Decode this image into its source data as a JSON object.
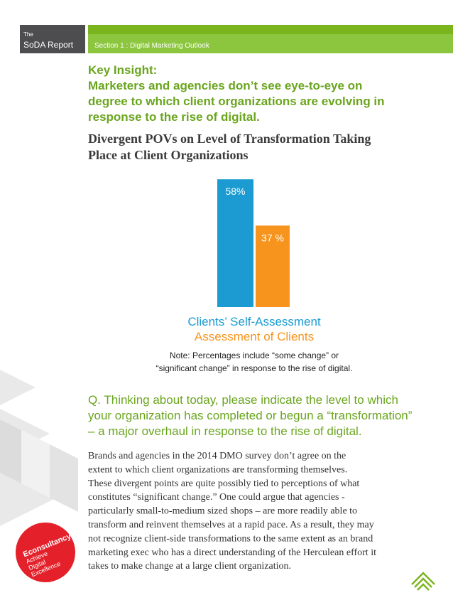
{
  "header": {
    "kicker": "The",
    "report": "SoDA Report",
    "section": "Section 1 : Digital Marketing Outlook"
  },
  "key_insight": {
    "lines": [
      "Key Insight:",
      "Marketers and agencies don’t see eye-to-eye on",
      "degree to which client organizations are evolving in",
      "response to the rise of digital."
    ]
  },
  "chart_data": {
    "type": "bar",
    "title": [
      "Divergent POVs on Level of Transformation Taking",
      "Place at Client Organizations"
    ],
    "series": [
      {
        "name": "Clients’ Self-Assessment",
        "color": "#1b9bd1",
        "values": [
          58
        ],
        "value_labels": [
          "58%"
        ]
      },
      {
        "name": "Assessment of Clients",
        "color": "#f7941d",
        "values": [
          37
        ],
        "value_labels": [
          "37 %"
        ]
      }
    ],
    "note": [
      "Note: Percentages include “some change” or",
      "“significant change” in response to the rise of digital."
    ]
  },
  "question": {
    "lines": [
      "Q. Thinking about today, please indicate the level to which",
      "your organization has completed or begun a “transformation”",
      "– a major overhaul in response to the rise of digital."
    ]
  },
  "body": {
    "lines": [
      "Brands and agencies in the 2014 DMO survey don’t agree on the",
      "extent to which client organizations are transforming themselves.",
      "These divergent points are quite possibly tied to perceptions of what",
      "constitutes “significant change.” One could argue that agencies -",
      "particularly small-to-medium sized shops – are more readily able to",
      "transform and reinvent themselves at a rapid pace. As a result, they may",
      "not recognize client-side transformations to the same extent as an brand",
      "marketing exec who has a direct understanding of the Herculean effort it",
      "takes to make change at a large client organization."
    ]
  },
  "logo": {
    "lines": [
      "Econsultancy",
      "Achieve",
      "Digital",
      "Excellence"
    ]
  }
}
